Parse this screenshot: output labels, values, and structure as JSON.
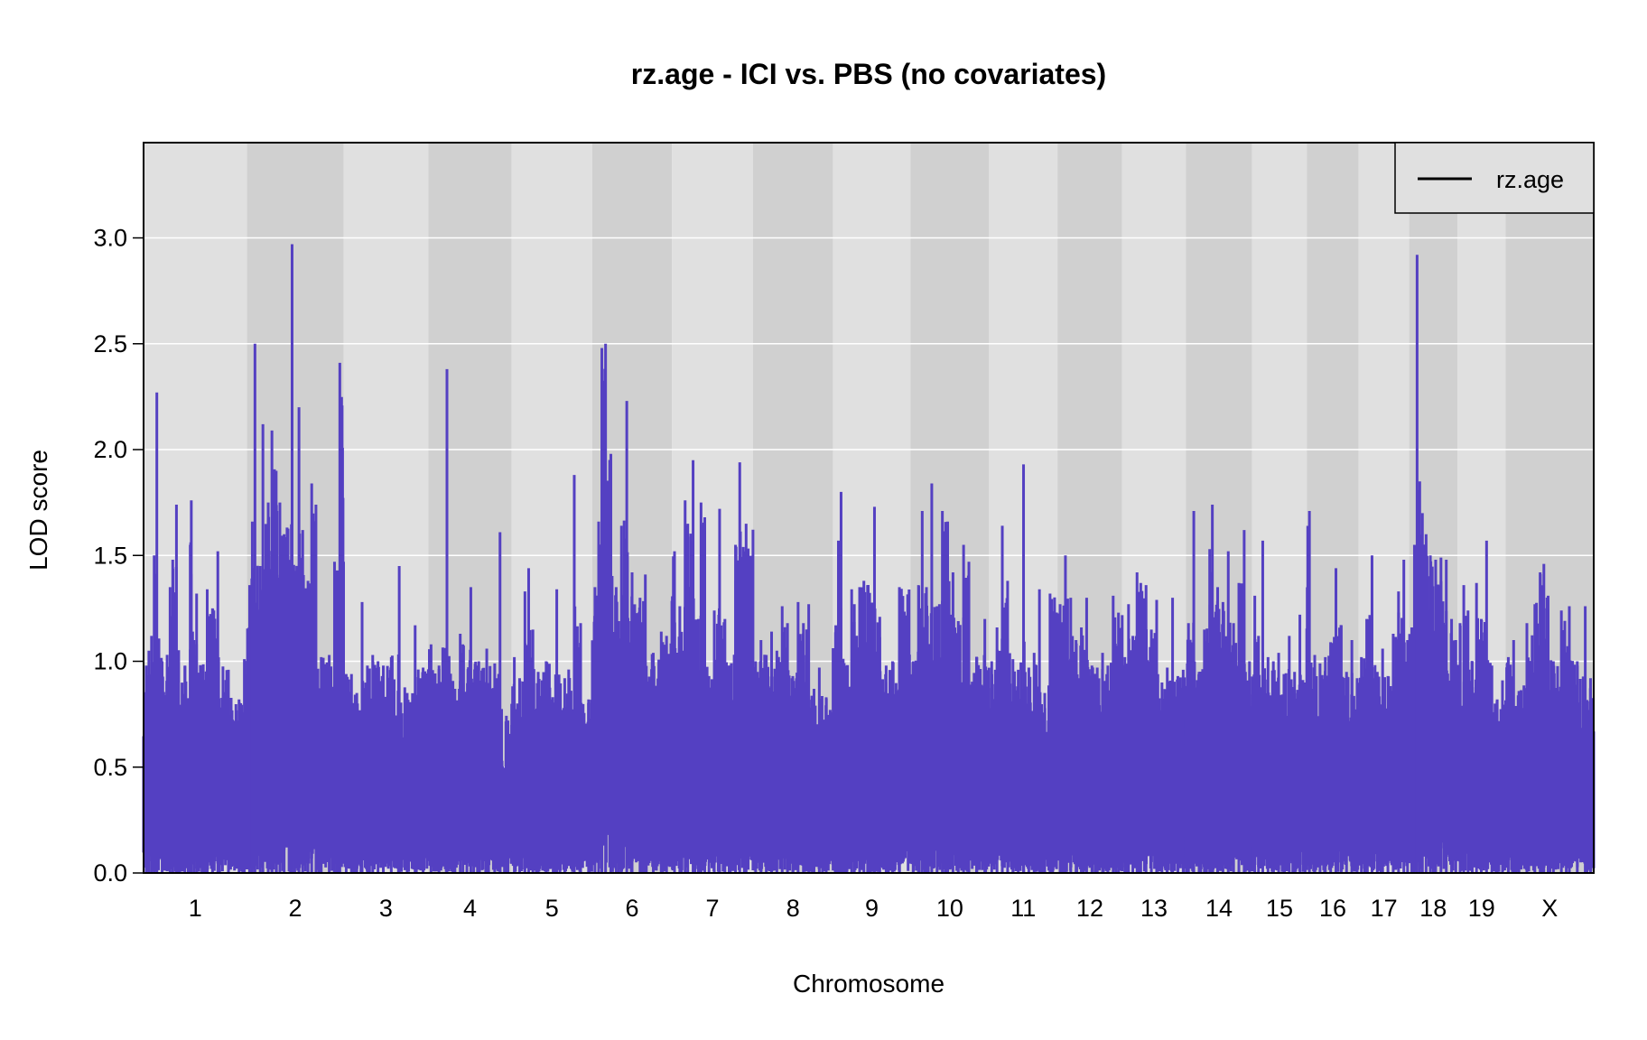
{
  "chart_data": {
    "type": "line",
    "title": "rz.age - ICI vs. PBS (no covariates)",
    "xlabel": "Chromosome",
    "ylabel": "LOD score",
    "ylim": [
      0,
      3.45
    ],
    "yticks": [
      0.0,
      0.5,
      1.0,
      1.5,
      2.0,
      2.5,
      3.0
    ],
    "ytick_labels": [
      "0.0",
      "0.5",
      "1.0",
      "1.5",
      "2.0",
      "2.5",
      "3.0"
    ],
    "grid": true,
    "legend_position": "top-right",
    "colors": {
      "line": "#5440c2",
      "band_light": "#e0e0e0",
      "band_dark": "#d0d0d0",
      "grid": "#ffffff",
      "frame": "#000000"
    },
    "series": [
      {
        "name": "rz.age",
        "legend_color": "#000000"
      }
    ],
    "chromosomes": [
      {
        "label": "1",
        "start": 0,
        "end": 195,
        "peaks": [
          [
            5,
            0.98
          ],
          [
            10,
            1.05
          ],
          [
            15,
            1.12
          ],
          [
            20,
            1.5
          ],
          [
            25,
            2.27
          ],
          [
            35,
            1.0
          ],
          [
            50,
            1.35
          ],
          [
            55,
            1.48
          ],
          [
            62,
            1.74
          ],
          [
            78,
            0.98
          ],
          [
            88,
            1.55
          ],
          [
            90,
            1.76
          ],
          [
            95,
            1.1
          ],
          [
            100,
            1.32
          ],
          [
            110,
            0.98
          ],
          [
            120,
            1.34
          ],
          [
            130,
            1.25
          ],
          [
            140,
            1.52
          ],
          [
            160,
            0.96
          ],
          [
            180,
            0.82
          ],
          [
            190,
            1.01
          ]
        ]
      },
      {
        "label": "2",
        "start": 195,
        "end": 377,
        "peaks": [
          [
            5,
            1.36
          ],
          [
            10,
            1.66
          ],
          [
            15,
            2.5
          ],
          [
            25,
            1.45
          ],
          [
            30,
            2.12
          ],
          [
            40,
            1.75
          ],
          [
            47,
            2.09
          ],
          [
            55,
            1.9
          ],
          [
            62,
            1.75
          ],
          [
            70,
            1.6
          ],
          [
            85,
            2.97
          ],
          [
            90,
            1.4
          ],
          [
            98,
            2.2
          ],
          [
            105,
            1.62
          ],
          [
            115,
            1.38
          ],
          [
            122,
            1.84
          ],
          [
            130,
            1.74
          ],
          [
            140,
            1.02
          ],
          [
            155,
            1.03
          ],
          [
            165,
            1.47
          ],
          [
            175,
            2.41
          ]
        ]
      },
      {
        "label": "3",
        "start": 377,
        "end": 537,
        "peaks": [
          [
            5,
            0.94
          ],
          [
            15,
            0.94
          ],
          [
            25,
            0.85
          ],
          [
            35,
            1.28
          ],
          [
            45,
            0.98
          ],
          [
            55,
            1.03
          ],
          [
            65,
            1.0
          ],
          [
            75,
            0.98
          ],
          [
            90,
            1.02
          ],
          [
            105,
            1.45
          ],
          [
            120,
            0.85
          ],
          [
            135,
            1.17
          ],
          [
            150,
            0.97
          ]
        ]
      },
      {
        "label": "4",
        "start": 537,
        "end": 694,
        "peaks": [
          [
            5,
            1.08
          ],
          [
            20,
            0.98
          ],
          [
            35,
            2.38
          ],
          [
            50,
            0.87
          ],
          [
            60,
            1.13
          ],
          [
            65,
            1.08
          ],
          [
            80,
            1.35
          ],
          [
            95,
            1.0
          ],
          [
            110,
            1.06
          ],
          [
            125,
            0.99
          ],
          [
            135,
            1.61
          ],
          [
            150,
            0.72
          ]
        ]
      },
      {
        "label": "5",
        "start": 694,
        "end": 846,
        "peaks": [
          [
            5,
            1.02
          ],
          [
            15,
            0.92
          ],
          [
            25,
            1.33
          ],
          [
            32,
            1.44
          ],
          [
            40,
            1.15
          ],
          [
            50,
            0.95
          ],
          [
            65,
            1.0
          ],
          [
            85,
            1.34
          ],
          [
            100,
            0.92
          ],
          [
            118,
            1.88
          ],
          [
            130,
            1.18
          ],
          [
            145,
            0.82
          ]
        ]
      },
      {
        "label": "6",
        "start": 846,
        "end": 996,
        "peaks": [
          [
            5,
            1.35
          ],
          [
            12,
            1.66
          ],
          [
            18,
            2.48
          ],
          [
            25,
            2.5
          ],
          [
            35,
            1.98
          ],
          [
            45,
            1.35
          ],
          [
            55,
            1.64
          ],
          [
            65,
            2.23
          ],
          [
            75,
            1.42
          ],
          [
            90,
            1.3
          ],
          [
            100,
            1.41
          ],
          [
            115,
            1.04
          ],
          [
            130,
            1.14
          ],
          [
            140,
            1.12
          ]
        ]
      },
      {
        "label": "7",
        "start": 996,
        "end": 1149,
        "peaks": [
          [
            5,
            1.52
          ],
          [
            15,
            1.26
          ],
          [
            25,
            1.76
          ],
          [
            30,
            1.65
          ],
          [
            40,
            1.95
          ],
          [
            50,
            1.2
          ],
          [
            55,
            1.75
          ],
          [
            62,
            1.68
          ],
          [
            70,
            0.93
          ],
          [
            80,
            1.24
          ],
          [
            90,
            1.72
          ],
          [
            100,
            1.2
          ],
          [
            108,
            0.98
          ],
          [
            120,
            1.55
          ],
          [
            128,
            1.94
          ],
          [
            140,
            1.65
          ]
        ]
      },
      {
        "label": "8",
        "start": 1149,
        "end": 1300,
        "peaks": [
          [
            5,
            1.0
          ],
          [
            15,
            1.1
          ],
          [
            25,
            1.03
          ],
          [
            35,
            1.14
          ],
          [
            45,
            1.05
          ],
          [
            55,
            1.26
          ],
          [
            65,
            1.18
          ],
          [
            75,
            0.93
          ],
          [
            85,
            1.28
          ],
          [
            95,
            1.18
          ],
          [
            105,
            1.27
          ],
          [
            115,
            0.87
          ],
          [
            125,
            0.97
          ],
          [
            138,
            0.83
          ]
        ]
      },
      {
        "label": "9",
        "start": 1300,
        "end": 1446,
        "peaks": [
          [
            5,
            1.17
          ],
          [
            10,
            1.57
          ],
          [
            15,
            1.8
          ],
          [
            25,
            0.98
          ],
          [
            35,
            1.34
          ],
          [
            40,
            1.27
          ],
          [
            50,
            1.35
          ],
          [
            58,
            1.38
          ],
          [
            65,
            1.36
          ],
          [
            78,
            1.73
          ],
          [
            88,
            1.21
          ],
          [
            100,
            0.98
          ],
          [
            112,
            1.0
          ],
          [
            125,
            1.35
          ]
        ]
      },
      {
        "label": "10",
        "start": 1446,
        "end": 1594,
        "peaks": [
          [
            5,
            1.0
          ],
          [
            15,
            1.36
          ],
          [
            22,
            1.71
          ],
          [
            30,
            1.35
          ],
          [
            40,
            1.84
          ],
          [
            50,
            1.26
          ],
          [
            60,
            1.71
          ],
          [
            70,
            1.66
          ],
          [
            80,
            1.42
          ],
          [
            90,
            1.19
          ],
          [
            100,
            1.55
          ],
          [
            110,
            1.47
          ],
          [
            125,
            1.02
          ],
          [
            140,
            1.2
          ]
        ]
      },
      {
        "label": "11",
        "start": 1594,
        "end": 1723,
        "peaks": [
          [
            5,
            1.0
          ],
          [
            15,
            1.16
          ],
          [
            25,
            1.64
          ],
          [
            35,
            1.38
          ],
          [
            45,
            1.01
          ],
          [
            55,
            0.96
          ],
          [
            65,
            1.93
          ],
          [
            75,
            0.97
          ],
          [
            85,
            1.04
          ],
          [
            95,
            1.34
          ],
          [
            105,
            0.85
          ],
          [
            115,
            1.32
          ]
        ]
      },
      {
        "label": "12",
        "start": 1723,
        "end": 1845,
        "peaks": [
          [
            5,
            1.27
          ],
          [
            15,
            1.5
          ],
          [
            25,
            1.3
          ],
          [
            35,
            1.1
          ],
          [
            45,
            1.16
          ],
          [
            55,
            1.3
          ],
          [
            65,
            0.98
          ],
          [
            75,
            0.97
          ],
          [
            85,
            1.04
          ],
          [
            95,
            0.98
          ],
          [
            105,
            1.31
          ],
          [
            115,
            1.23
          ]
        ]
      },
      {
        "label": "13",
        "start": 1845,
        "end": 1965,
        "peaks": [
          [
            5,
            1.02
          ],
          [
            12,
            1.27
          ],
          [
            20,
            1.12
          ],
          [
            28,
            1.42
          ],
          [
            35,
            1.37
          ],
          [
            45,
            1.36
          ],
          [
            55,
            1.15
          ],
          [
            65,
            1.29
          ],
          [
            75,
            0.9
          ],
          [
            85,
            0.97
          ],
          [
            95,
            1.3
          ],
          [
            105,
            0.93
          ],
          [
            115,
            0.96
          ]
        ]
      },
      {
        "label": "14",
        "start": 1965,
        "end": 2090,
        "peaks": [
          [
            5,
            1.18
          ],
          [
            15,
            1.71
          ],
          [
            25,
            0.95
          ],
          [
            35,
            1.15
          ],
          [
            45,
            1.53
          ],
          [
            50,
            1.74
          ],
          [
            60,
            1.35
          ],
          [
            70,
            1.28
          ],
          [
            80,
            1.52
          ],
          [
            90,
            1.18
          ],
          [
            100,
            1.37
          ],
          [
            110,
            1.62
          ],
          [
            120,
            1.0
          ]
        ]
      },
      {
        "label": "15",
        "start": 2090,
        "end": 2193,
        "peaks": [
          [
            5,
            1.31
          ],
          [
            12,
            1.12
          ],
          [
            20,
            1.57
          ],
          [
            30,
            1.02
          ],
          [
            40,
            1.0
          ],
          [
            50,
            1.04
          ],
          [
            60,
            0.94
          ],
          [
            70,
            1.12
          ],
          [
            80,
            0.95
          ],
          [
            90,
            1.22
          ],
          [
            100,
            0.9
          ]
        ]
      },
      {
        "label": "16",
        "start": 2193,
        "end": 2291,
        "peaks": [
          [
            5,
            1.71
          ],
          [
            15,
            1.03
          ],
          [
            25,
            0.99
          ],
          [
            35,
            1.02
          ],
          [
            45,
            1.09
          ],
          [
            55,
            1.44
          ],
          [
            65,
            1.17
          ],
          [
            75,
            0.95
          ],
          [
            85,
            1.1
          ],
          [
            95,
            0.92
          ]
        ]
      },
      {
        "label": "17",
        "start": 2291,
        "end": 2386,
        "peaks": [
          [
            5,
            1.02
          ],
          [
            15,
            1.2
          ],
          [
            25,
            1.5
          ],
          [
            35,
            0.95
          ],
          [
            45,
            1.06
          ],
          [
            55,
            0.93
          ],
          [
            65,
            1.13
          ],
          [
            75,
            1.33
          ],
          [
            85,
            1.48
          ],
          [
            92,
            1.1
          ]
        ]
      },
      {
        "label": "18",
        "start": 2386,
        "end": 2477,
        "peaks": [
          [
            5,
            1.16
          ],
          [
            10,
            1.55
          ],
          [
            15,
            2.92
          ],
          [
            20,
            1.85
          ],
          [
            25,
            1.7
          ],
          [
            32,
            1.6
          ],
          [
            40,
            1.5
          ],
          [
            50,
            1.48
          ],
          [
            60,
            1.49
          ],
          [
            70,
            1.48
          ],
          [
            80,
            1.2
          ],
          [
            88,
            1.1
          ]
        ]
      },
      {
        "label": "19",
        "start": 2477,
        "end": 2568,
        "peaks": [
          [
            5,
            1.18
          ],
          [
            12,
            1.36
          ],
          [
            20,
            1.24
          ],
          [
            28,
            1.0
          ],
          [
            36,
            1.37
          ],
          [
            45,
            1.2
          ],
          [
            55,
            1.57
          ],
          [
            65,
            0.98
          ],
          [
            75,
            0.82
          ],
          [
            85,
            0.91
          ]
        ]
      },
      {
        "label": "X",
        "start": 2568,
        "end": 2734,
        "peaks": [
          [
            5,
            1.02
          ],
          [
            15,
            1.1
          ],
          [
            25,
            0.86
          ],
          [
            40,
            1.18
          ],
          [
            55,
            1.27
          ],
          [
            65,
            1.42
          ],
          [
            72,
            1.46
          ],
          [
            80,
            1.31
          ],
          [
            90,
            1.0
          ],
          [
            105,
            1.24
          ],
          [
            120,
            1.26
          ],
          [
            135,
            1.0
          ],
          [
            150,
            1.26
          ],
          [
            160,
            0.92
          ]
        ]
      }
    ]
  }
}
